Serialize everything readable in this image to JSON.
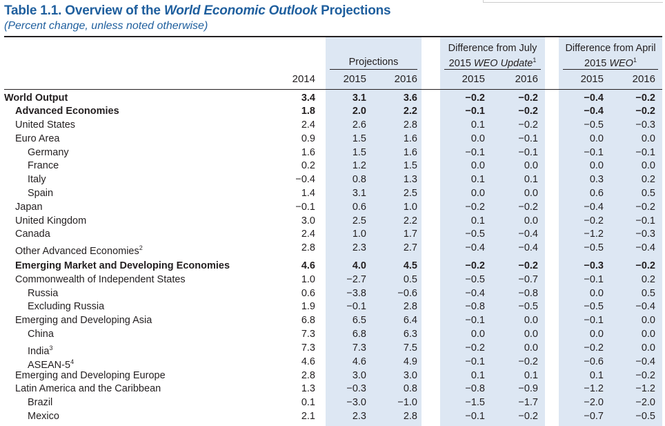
{
  "title": {
    "prefix": "Table 1.1. Overview of the ",
    "italic": "World Economic Outlook",
    "suffix": " Projections"
  },
  "subtitle": "(Percent change, unless noted otherwise)",
  "headers": {
    "projections": "Projections",
    "diff_july_line1": "Difference from July",
    "diff_july_line2_plain": "2015 ",
    "diff_july_line2_italic": "WEO Update",
    "diff_july_note": "1",
    "diff_april_line1": "Difference from April",
    "diff_april_line2_plain": "2015 ",
    "diff_april_line2_italic": "WEO",
    "diff_april_note": "1",
    "years": [
      "2014",
      "2015",
      "2016",
      "2015",
      "2016",
      "2015",
      "2016"
    ]
  },
  "rows": [
    {
      "label": "World Output",
      "note": "",
      "indent": 0,
      "bold": true,
      "values": [
        "3.4",
        "3.1",
        "3.6",
        "−0.2",
        "−0.2",
        "−0.4",
        "−0.2"
      ]
    },
    {
      "label": "Advanced Economies",
      "note": "",
      "indent": 1,
      "bold": true,
      "values": [
        "1.8",
        "2.0",
        "2.2",
        "−0.1",
        "−0.2",
        "−0.4",
        "−0.2"
      ]
    },
    {
      "label": "United States",
      "note": "",
      "indent": 1,
      "bold": false,
      "values": [
        "2.4",
        "2.6",
        "2.8",
        "0.1",
        "−0.2",
        "−0.5",
        "−0.3"
      ]
    },
    {
      "label": "Euro Area",
      "note": "",
      "indent": 1,
      "bold": false,
      "values": [
        "0.9",
        "1.5",
        "1.6",
        "0.0",
        "−0.1",
        "0.0",
        "0.0"
      ]
    },
    {
      "label": "Germany",
      "note": "",
      "indent": 2,
      "bold": false,
      "values": [
        "1.6",
        "1.5",
        "1.6",
        "−0.1",
        "−0.1",
        "−0.1",
        "−0.1"
      ]
    },
    {
      "label": "France",
      "note": "",
      "indent": 2,
      "bold": false,
      "values": [
        "0.2",
        "1.2",
        "1.5",
        "0.0",
        "0.0",
        "0.0",
        "0.0"
      ]
    },
    {
      "label": "Italy",
      "note": "",
      "indent": 2,
      "bold": false,
      "values": [
        "−0.4",
        "0.8",
        "1.3",
        "0.1",
        "0.1",
        "0.3",
        "0.2"
      ]
    },
    {
      "label": "Spain",
      "note": "",
      "indent": 2,
      "bold": false,
      "values": [
        "1.4",
        "3.1",
        "2.5",
        "0.0",
        "0.0",
        "0.6",
        "0.5"
      ]
    },
    {
      "label": "Japan",
      "note": "",
      "indent": 1,
      "bold": false,
      "values": [
        "−0.1",
        "0.6",
        "1.0",
        "−0.2",
        "−0.2",
        "−0.4",
        "−0.2"
      ]
    },
    {
      "label": "United Kingdom",
      "note": "",
      "indent": 1,
      "bold": false,
      "values": [
        "3.0",
        "2.5",
        "2.2",
        "0.1",
        "0.0",
        "−0.2",
        "−0.1"
      ]
    },
    {
      "label": "Canada",
      "note": "",
      "indent": 1,
      "bold": false,
      "values": [
        "2.4",
        "1.0",
        "1.7",
        "−0.5",
        "−0.4",
        "−1.2",
        "−0.3"
      ]
    },
    {
      "label": "Other Advanced Economies",
      "note": "2",
      "indent": 1,
      "bold": false,
      "values": [
        "2.8",
        "2.3",
        "2.7",
        "−0.4",
        "−0.4",
        "−0.5",
        "−0.4"
      ]
    },
    {
      "label": "Emerging Market and Developing Economies",
      "note": "",
      "indent": 1,
      "bold": true,
      "values": [
        "4.6",
        "4.0",
        "4.5",
        "−0.2",
        "−0.2",
        "−0.3",
        "−0.2"
      ]
    },
    {
      "label": "Commonwealth of Independent States",
      "note": "",
      "indent": 1,
      "bold": false,
      "values": [
        "1.0",
        "−2.7",
        "0.5",
        "−0.5",
        "−0.7",
        "−0.1",
        "0.2"
      ]
    },
    {
      "label": "Russia",
      "note": "",
      "indent": 2,
      "bold": false,
      "values": [
        "0.6",
        "−3.8",
        "−0.6",
        "−0.4",
        "−0.8",
        "0.0",
        "0.5"
      ]
    },
    {
      "label": "Excluding Russia",
      "note": "",
      "indent": 2,
      "bold": false,
      "values": [
        "1.9",
        "−0.1",
        "2.8",
        "−0.8",
        "−0.5",
        "−0.5",
        "−0.4"
      ]
    },
    {
      "label": "Emerging and Developing Asia",
      "note": "",
      "indent": 1,
      "bold": false,
      "values": [
        "6.8",
        "6.5",
        "6.4",
        "−0.1",
        "0.0",
        "−0.1",
        "0.0"
      ]
    },
    {
      "label": "China",
      "note": "",
      "indent": 2,
      "bold": false,
      "values": [
        "7.3",
        "6.8",
        "6.3",
        "0.0",
        "0.0",
        "0.0",
        "0.0"
      ]
    },
    {
      "label": "India",
      "note": "3",
      "indent": 2,
      "bold": false,
      "values": [
        "7.3",
        "7.3",
        "7.5",
        "−0.2",
        "0.0",
        "−0.2",
        "0.0"
      ]
    },
    {
      "label": "ASEAN-5",
      "note": "4",
      "indent": 2,
      "bold": false,
      "values": [
        "4.6",
        "4.6",
        "4.9",
        "−0.1",
        "−0.2",
        "−0.6",
        "−0.4"
      ]
    },
    {
      "label": "Emerging and Developing Europe",
      "note": "",
      "indent": 1,
      "bold": false,
      "values": [
        "2.8",
        "3.0",
        "3.0",
        "0.1",
        "0.1",
        "0.1",
        "−0.2"
      ]
    },
    {
      "label": "Latin America and the Caribbean",
      "note": "",
      "indent": 1,
      "bold": false,
      "values": [
        "1.3",
        "−0.3",
        "0.8",
        "−0.8",
        "−0.9",
        "−1.2",
        "−1.2"
      ]
    },
    {
      "label": "Brazil",
      "note": "",
      "indent": 2,
      "bold": false,
      "values": [
        "0.1",
        "−3.0",
        "−1.0",
        "−1.5",
        "−1.7",
        "−2.0",
        "−2.0"
      ]
    },
    {
      "label": "Mexico",
      "note": "",
      "indent": 2,
      "bold": false,
      "values": [
        "2.1",
        "2.3",
        "2.8",
        "−0.1",
        "−0.2",
        "−0.7",
        "−0.5"
      ]
    }
  ]
}
